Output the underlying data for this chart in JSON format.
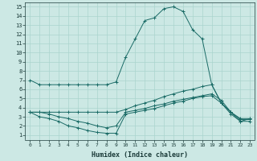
{
  "xlabel": "Humidex (Indice chaleur)",
  "xlim": [
    -0.5,
    23.5
  ],
  "ylim": [
    0.5,
    15.5
  ],
  "xticks": [
    0,
    1,
    2,
    3,
    4,
    5,
    6,
    7,
    8,
    9,
    10,
    11,
    12,
    13,
    14,
    15,
    16,
    17,
    18,
    19,
    20,
    21,
    22,
    23
  ],
  "yticks": [
    1,
    2,
    3,
    4,
    5,
    6,
    7,
    8,
    9,
    10,
    11,
    12,
    13,
    14,
    15
  ],
  "bg_color": "#cce8e4",
  "grid_color": "#aad4ce",
  "line_color": "#1a6b66",
  "line1_y": [
    7.0,
    6.5,
    6.5,
    6.5,
    6.5,
    6.5,
    6.5,
    6.5,
    6.5,
    6.8,
    9.5,
    11.5,
    13.5,
    13.8,
    14.8,
    15.0,
    14.5,
    12.5,
    11.5,
    6.5,
    4.5,
    3.5,
    2.5,
    2.8
  ],
  "line2_y": [
    3.5,
    3.5,
    3.5,
    3.5,
    3.5,
    3.5,
    3.5,
    3.5,
    3.5,
    3.5,
    3.8,
    4.2,
    4.5,
    4.8,
    5.2,
    5.5,
    5.8,
    6.0,
    6.3,
    6.5,
    4.5,
    3.5,
    2.8,
    2.8
  ],
  "line3_y": [
    3.5,
    3.0,
    2.8,
    2.5,
    2.0,
    1.8,
    1.5,
    1.3,
    1.2,
    1.2,
    3.3,
    3.5,
    3.7,
    3.9,
    4.2,
    4.5,
    4.7,
    5.0,
    5.2,
    5.3,
    4.5,
    3.3,
    2.5,
    2.5
  ],
  "line4_y": [
    3.5,
    3.5,
    3.3,
    3.0,
    2.8,
    2.5,
    2.3,
    2.0,
    1.8,
    2.0,
    3.5,
    3.7,
    3.9,
    4.2,
    4.4,
    4.7,
    4.9,
    5.1,
    5.3,
    5.5,
    4.8,
    3.5,
    2.7,
    2.7
  ]
}
